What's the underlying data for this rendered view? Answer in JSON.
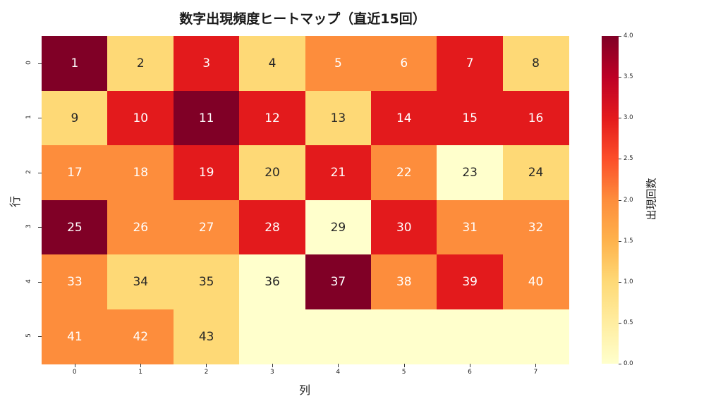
{
  "chart_data": {
    "type": "heatmap",
    "title": "数字出現頻度ヒートマップ（直近15回）",
    "xlabel": "列",
    "ylabel": "行",
    "x_ticks": [
      "0",
      "1",
      "2",
      "3",
      "4",
      "5",
      "6",
      "7"
    ],
    "y_ticks": [
      "0",
      "1",
      "2",
      "3",
      "4",
      "5"
    ],
    "colorbar": {
      "label": "出現回数",
      "range": [
        0.0,
        4.0
      ],
      "ticks": [
        "0.0",
        "0.5",
        "1.0",
        "1.5",
        "2.0",
        "2.5",
        "3.0",
        "3.5",
        "4.0"
      ],
      "colormap": "YlOrRd"
    },
    "annotations": [
      [
        "1",
        "2",
        "3",
        "4",
        "5",
        "6",
        "7",
        "8"
      ],
      [
        "9",
        "10",
        "11",
        "12",
        "13",
        "14",
        "15",
        "16"
      ],
      [
        "17",
        "18",
        "19",
        "20",
        "21",
        "22",
        "23",
        "24"
      ],
      [
        "25",
        "26",
        "27",
        "28",
        "29",
        "30",
        "31",
        "32"
      ],
      [
        "33",
        "34",
        "35",
        "36",
        "37",
        "38",
        "39",
        "40"
      ],
      [
        "41",
        "42",
        "43",
        "",
        "",
        "",
        "",
        ""
      ]
    ],
    "values": [
      [
        4,
        1,
        3,
        1,
        2,
        2,
        3,
        1
      ],
      [
        1,
        3,
        4,
        3,
        1,
        3,
        3,
        3
      ],
      [
        2,
        2,
        3,
        1,
        3,
        2,
        0,
        1
      ],
      [
        4,
        2,
        2,
        3,
        0,
        3,
        2,
        2
      ],
      [
        2,
        1,
        1,
        0,
        4,
        2,
        3,
        2
      ],
      [
        2,
        2,
        1,
        0,
        0,
        0,
        0,
        0
      ]
    ],
    "colors": {
      "0": "#ffffcc",
      "1": "#fed976",
      "2": "#fd8d3c",
      "3": "#e31a1c",
      "4": "#800026"
    }
  }
}
